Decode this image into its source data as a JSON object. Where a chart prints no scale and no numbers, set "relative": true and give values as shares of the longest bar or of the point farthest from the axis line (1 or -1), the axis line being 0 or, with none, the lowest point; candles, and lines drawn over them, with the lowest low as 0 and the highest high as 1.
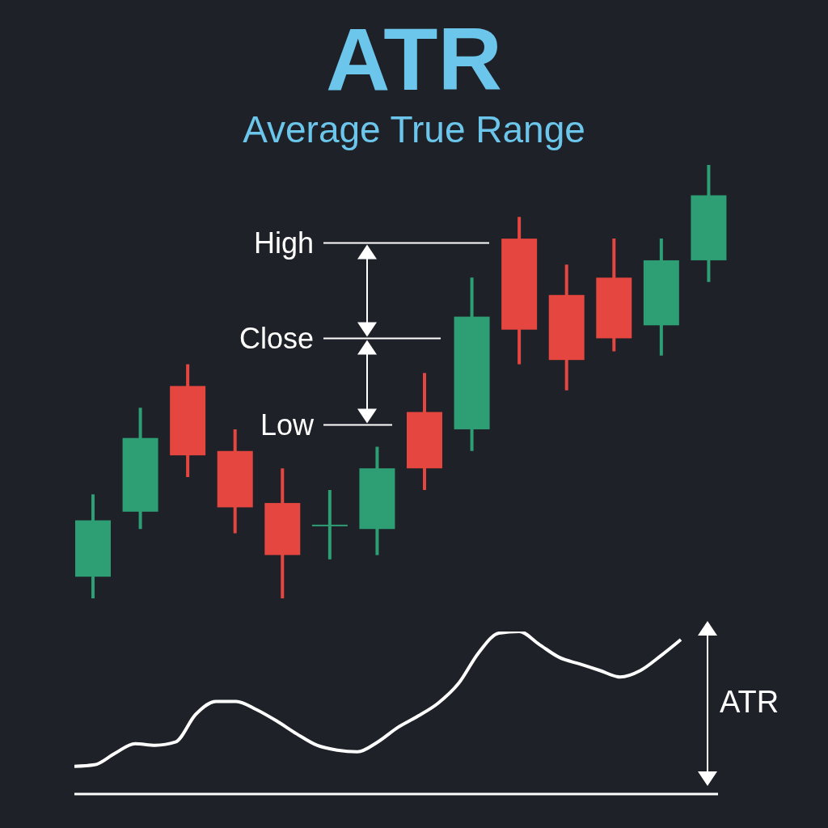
{
  "chart_data": [
    {
      "type": "candlestick",
      "title": "ATR",
      "subtitle": "Average True Range",
      "relative": true,
      "categories": [
        null,
        null,
        null,
        null,
        null,
        null,
        null,
        null,
        null,
        null,
        null,
        null,
        null,
        null
      ],
      "ohlc": [
        [
          0.05,
          0.24,
          0.0,
          0.18
        ],
        [
          0.2,
          0.44,
          0.16,
          0.37
        ],
        [
          0.49,
          0.54,
          0.28,
          0.33
        ],
        [
          0.34,
          0.39,
          0.15,
          0.21
        ],
        [
          0.22,
          0.3,
          0.0,
          0.1
        ],
        [
          0.17,
          0.25,
          0.09,
          0.17
        ],
        [
          0.16,
          0.35,
          0.1,
          0.3
        ],
        [
          0.43,
          0.52,
          0.25,
          0.3
        ],
        [
          0.39,
          0.74,
          0.34,
          0.65
        ],
        [
          0.83,
          0.88,
          0.54,
          0.62
        ],
        [
          0.7,
          0.77,
          0.48,
          0.55
        ],
        [
          0.74,
          0.83,
          0.57,
          0.6
        ],
        [
          0.63,
          0.83,
          0.56,
          0.78
        ],
        [
          0.78,
          1.0,
          0.73,
          0.93
        ]
      ],
      "colors": [
        "#2e9e74",
        "#2e9e74",
        "#e5463f",
        "#e5463f",
        "#e5463f",
        "#2e9e74",
        "#2e9e74",
        "#e5463f",
        "#2e9e74",
        "#e5463f",
        "#e5463f",
        "#e5463f",
        "#2e9e74",
        "#2e9e74"
      ],
      "annotations": [
        "High",
        "Close",
        "Low"
      ]
    },
    {
      "type": "line",
      "relative": true,
      "color": "#ffffff",
      "categories": [
        null,
        null,
        null,
        null,
        null,
        null,
        null,
        null,
        null,
        null,
        null,
        null,
        null,
        null,
        null,
        null,
        null,
        null,
        null,
        null,
        null,
        null,
        null,
        null,
        null,
        null,
        null,
        null,
        null,
        null,
        null
      ],
      "values": [
        0.17,
        0.18,
        0.25,
        0.31,
        0.3,
        0.32,
        0.49,
        0.57,
        0.57,
        0.52,
        0.45,
        0.37,
        0.3,
        0.27,
        0.26,
        0.32,
        0.41,
        0.48,
        0.56,
        0.68,
        0.87,
        0.99,
        1.0,
        0.92,
        0.84,
        0.8,
        0.76,
        0.72,
        0.76,
        0.85,
        0.95
      ],
      "annotations": [
        "ATR"
      ]
    }
  ]
}
